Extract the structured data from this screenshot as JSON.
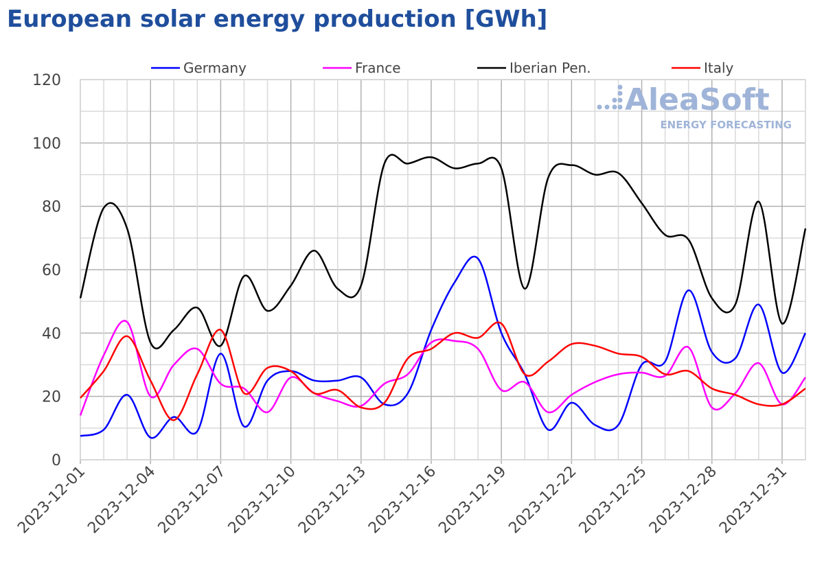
{
  "title": "European solar energy production [GWh]",
  "watermark": {
    "brand": "AleaSoft",
    "tagline": "ENERGY FORECASTING",
    "color": "#9fb4d8"
  },
  "chart_data": {
    "type": "line",
    "title": "European solar energy production [GWh]",
    "xlabel": "",
    "ylabel": "",
    "ylim": [
      0,
      120
    ],
    "yticks": [
      0,
      20,
      40,
      60,
      80,
      100,
      120
    ],
    "grid": true,
    "legend": "top",
    "x": [
      "2023-12-01",
      "2023-12-02",
      "2023-12-03",
      "2023-12-04",
      "2023-12-05",
      "2023-12-06",
      "2023-12-07",
      "2023-12-08",
      "2023-12-09",
      "2023-12-10",
      "2023-12-11",
      "2023-12-12",
      "2023-12-13",
      "2023-12-14",
      "2023-12-15",
      "2023-12-16",
      "2023-12-17",
      "2023-12-18",
      "2023-12-19",
      "2023-12-20",
      "2023-12-21",
      "2023-12-22",
      "2023-12-23",
      "2023-12-24",
      "2023-12-25",
      "2023-12-26",
      "2023-12-27",
      "2023-12-28",
      "2023-12-29",
      "2023-12-30",
      "2023-12-31",
      "2024-01-01"
    ],
    "xtick_labels": [
      "2023-12-01",
      "2023-12-04",
      "2023-12-07",
      "2023-12-10",
      "2023-12-13",
      "2023-12-16",
      "2023-12-19",
      "2023-12-22",
      "2023-12-25",
      "2023-12-28",
      "2023-12-31"
    ],
    "series": [
      {
        "name": "Germany",
        "color": "#0000ff",
        "values": [
          7.5,
          9.5,
          20.5,
          7,
          13.5,
          9,
          33.5,
          10.5,
          25,
          28,
          25,
          25,
          26,
          17.5,
          21,
          41,
          56,
          63.5,
          40,
          27,
          9.5,
          18,
          11,
          11,
          30,
          31,
          53.5,
          34,
          32,
          49,
          27.5,
          40
        ]
      },
      {
        "name": "France",
        "color": "#ff00ff",
        "values": [
          14,
          33,
          43.5,
          20,
          30,
          35,
          24,
          22.5,
          15,
          26,
          21,
          18.5,
          17,
          24,
          27,
          37,
          37.5,
          35,
          22,
          24.5,
          15,
          20.5,
          24.5,
          27,
          27.5,
          26.5,
          35.5,
          16.5,
          21,
          30.5,
          17.5,
          26
        ]
      },
      {
        "name": "Iberian Pen.",
        "color": "#000000",
        "values": [
          51,
          79.5,
          73,
          37,
          41,
          48,
          36,
          58,
          47,
          55,
          66,
          54,
          55,
          93.5,
          93.5,
          95.5,
          92,
          93.5,
          92,
          54,
          89,
          93,
          90,
          90.5,
          81,
          71,
          69.5,
          51,
          49,
          81.5,
          43,
          73
        ]
      },
      {
        "name": "Italy",
        "color": "#ff0000",
        "values": [
          19.5,
          28,
          39,
          25,
          12.5,
          27,
          41,
          21,
          29,
          28,
          21,
          22,
          16.5,
          18,
          32,
          35,
          40,
          38.5,
          43,
          27,
          31,
          36.5,
          36,
          33.5,
          32.5,
          27,
          28,
          22.5,
          20.5,
          17.5,
          17.5,
          22.5
        ]
      }
    ]
  }
}
